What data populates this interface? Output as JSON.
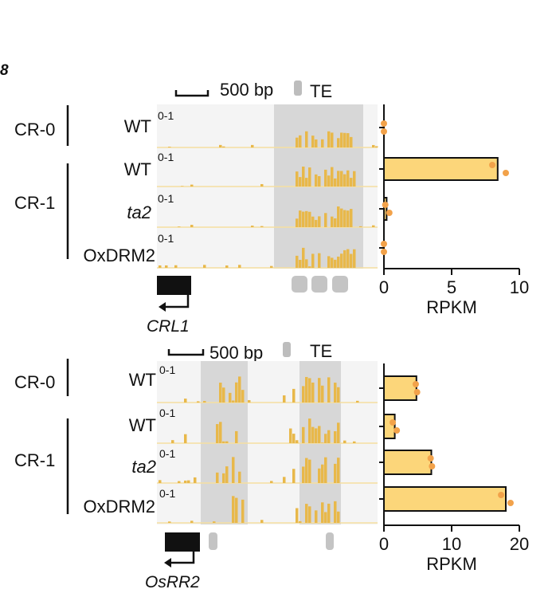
{
  "panel_letter": "8",
  "colors": {
    "track_fill": "#e8b84a",
    "track_baseline": "#f5dfa0",
    "track_bg": "#f4f4f4",
    "te_shade": "#bdbdbd",
    "bar_fill": "#fcd67a",
    "dot": "#f2a24a",
    "gene": "#111111",
    "panel_letter": "#3aa55a"
  },
  "panels": [
    {
      "scale_label": "500 bp",
      "te_label": "TE",
      "gene_name": "CRL1",
      "groups": [
        "CR-0",
        "CR-1"
      ],
      "rows": [
        {
          "genotype": "WT",
          "range": "0-1"
        },
        {
          "genotype": "WT",
          "range": "0-1"
        },
        {
          "genotype": "ta2",
          "range": "0-1"
        },
        {
          "genotype": "OxDRM2",
          "range": "0-1"
        }
      ]
    },
    {
      "scale_label": "500 bp",
      "te_label": "TE",
      "gene_name": "OsRR2",
      "groups": [
        "CR-0",
        "CR-1"
      ],
      "rows": [
        {
          "genotype": "WT",
          "range": "0-1"
        },
        {
          "genotype": "WT",
          "range": "0-1"
        },
        {
          "genotype": "ta2",
          "range": "0-1"
        },
        {
          "genotype": "OxDRM2",
          "range": "0-1"
        }
      ]
    }
  ],
  "chart_data": [
    {
      "type": "bar",
      "orientation": "horizontal",
      "categories": [
        "CR-0 WT",
        "CR-1 WT",
        "CR-1 ta2",
        "CR-1 OxDRM2"
      ],
      "values": [
        0,
        8.4,
        0.2,
        0
      ],
      "points": [
        [
          0,
          0
        ],
        [
          8.0,
          9.0
        ],
        [
          0.1,
          0.4
        ],
        [
          0,
          0
        ]
      ],
      "xlabel": "RPKM",
      "xlim": [
        0,
        10
      ],
      "xticks": [
        "0",
        "5",
        "10"
      ]
    },
    {
      "type": "bar",
      "orientation": "horizontal",
      "categories": [
        "CR-0 WT",
        "CR-1 WT",
        "CR-1 ta2",
        "CR-1 OxDRM2"
      ],
      "values": [
        4.8,
        1.6,
        7.0,
        18.0
      ],
      "points": [
        [
          4.7,
          4.9
        ],
        [
          1.3,
          1.9
        ],
        [
          6.9,
          7.1
        ],
        [
          17.3,
          18.7
        ]
      ],
      "xlabel": "RPKM",
      "xlim": [
        0,
        20
      ],
      "xticks": [
        "0",
        "10",
        "20"
      ]
    }
  ]
}
